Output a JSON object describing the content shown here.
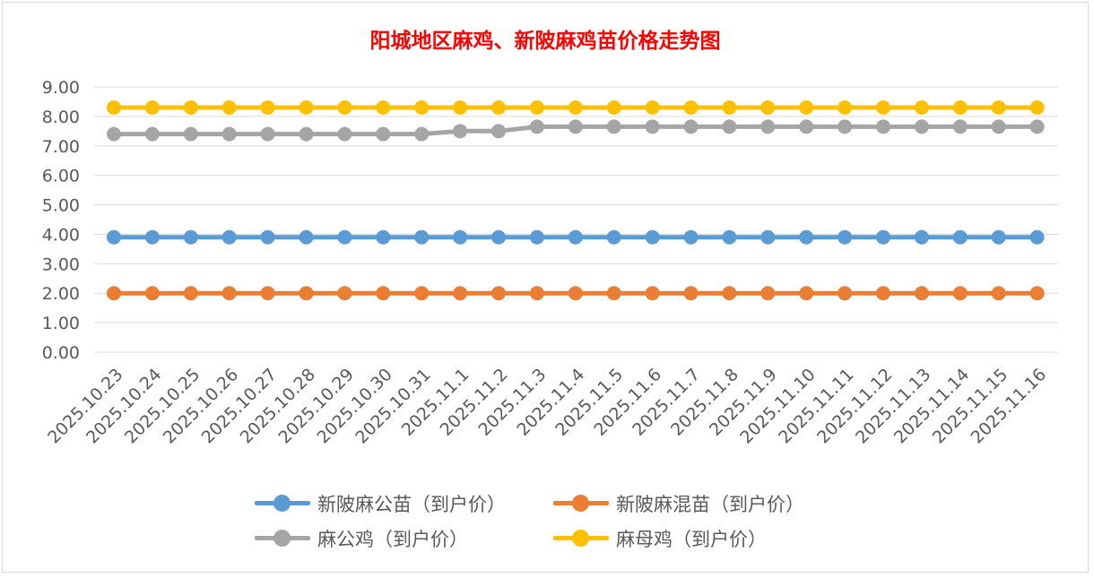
{
  "chart_data": {
    "type": "line",
    "title": "阳城地区麻鸡、新陂麻鸡苗价格走势图",
    "xlabel": "",
    "ylabel": "",
    "categories": [
      "2025.10.23",
      "2025.10.24",
      "2025.10.25",
      "2025.10.26",
      "2025.10.27",
      "2025.10.28",
      "2025.10.29",
      "2025.10.30",
      "2025.10.31",
      "2025.11.1",
      "2025.11.2",
      "2025.11.3",
      "2025.11.4",
      "2025.11.5",
      "2025.11.6",
      "2025.11.7",
      "2025.11.8",
      "2025.11.9",
      "2025.11.10",
      "2025.11.11",
      "2025.11.12",
      "2025.11.13",
      "2025.11.14",
      "2025.11.15",
      "2025.11.16"
    ],
    "ylim": [
      0,
      9
    ],
    "yticks": [
      "0.00",
      "1.00",
      "2.00",
      "3.00",
      "4.00",
      "5.00",
      "6.00",
      "7.00",
      "8.00",
      "9.00"
    ],
    "grid": true,
    "legend_position": "bottom",
    "series": [
      {
        "name": "新陂麻公苗（到户价）",
        "color": "#5b9bd5",
        "values": [
          3.9,
          3.9,
          3.9,
          3.9,
          3.9,
          3.9,
          3.9,
          3.9,
          3.9,
          3.9,
          3.9,
          3.9,
          3.9,
          3.9,
          3.9,
          3.9,
          3.9,
          3.9,
          3.9,
          3.9,
          3.9,
          3.9,
          3.9,
          3.9,
          3.9
        ]
      },
      {
        "name": "新陂麻混苗（到户价）",
        "color": "#ed7d31",
        "values": [
          2.0,
          2.0,
          2.0,
          2.0,
          2.0,
          2.0,
          2.0,
          2.0,
          2.0,
          2.0,
          2.0,
          2.0,
          2.0,
          2.0,
          2.0,
          2.0,
          2.0,
          2.0,
          2.0,
          2.0,
          2.0,
          2.0,
          2.0,
          2.0,
          2.0
        ]
      },
      {
        "name": "麻公鸡（到户价）",
        "color": "#a5a5a5",
        "values": [
          7.4,
          7.4,
          7.4,
          7.4,
          7.4,
          7.4,
          7.4,
          7.4,
          7.4,
          7.5,
          7.5,
          7.65,
          7.65,
          7.65,
          7.65,
          7.65,
          7.65,
          7.65,
          7.65,
          7.65,
          7.65,
          7.65,
          7.65,
          7.65,
          7.65
        ]
      },
      {
        "name": "麻母鸡（到户价）",
        "color": "#ffc000",
        "values": [
          8.3,
          8.3,
          8.3,
          8.3,
          8.3,
          8.3,
          8.3,
          8.3,
          8.3,
          8.3,
          8.3,
          8.3,
          8.3,
          8.3,
          8.3,
          8.3,
          8.3,
          8.3,
          8.3,
          8.3,
          8.3,
          8.3,
          8.3,
          8.3,
          8.3
        ]
      }
    ]
  },
  "legend": [
    {
      "label": "新陂麻公苗（到户价）",
      "color": "#5b9bd5"
    },
    {
      "label": "新陂麻混苗（到户价）",
      "color": "#ed7d31"
    },
    {
      "label": "麻公鸡（到户价）",
      "color": "#a5a5a5"
    },
    {
      "label": "麻母鸡（到户价）",
      "color": "#ffc000"
    }
  ]
}
